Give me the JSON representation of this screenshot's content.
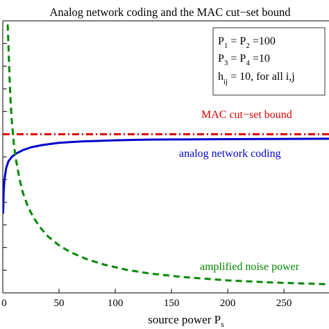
{
  "chart_data": {
    "type": "line",
    "title": "Analog network coding and the MAC cut−set bound",
    "xlabel": "source power P",
    "xlabel_sub": "s",
    "ylabel": "",
    "xlim": [
      0,
      290
    ],
    "ylim": [
      0,
      12
    ],
    "xticks": [
      0,
      50,
      100,
      150,
      200,
      250
    ],
    "xtick_labels": [
      "0",
      "50",
      "100",
      "150",
      "200",
      "250"
    ],
    "grid": false,
    "parameters_box": {
      "line1": {
        "a": "P",
        "a_sub": "1",
        "eq1": " = P",
        "b_sub": "2",
        "eq2": " =100"
      },
      "line2": {
        "a": "P",
        "a_sub": "3",
        "eq1": " = P",
        "b_sub": "4",
        "eq2": " =10"
      },
      "line3": {
        "a": "h",
        "a_sub": "ij",
        "eq1": " = 10, for all i,j"
      }
    },
    "series": [
      {
        "name": "MAC cut−set bound",
        "color": "#dd0000",
        "style": "dash-dot",
        "x": [
          0,
          290
        ],
        "y": [
          7.0,
          7.0
        ]
      },
      {
        "name": "analog network coding",
        "color": "#0000cc",
        "style": "solid",
        "x": [
          0.3,
          0.8,
          1.5,
          3,
          5,
          8,
          12,
          18,
          25,
          35,
          50,
          70,
          100,
          130,
          160,
          200,
          240,
          290
        ],
        "y": [
          3.5,
          4.5,
          5.0,
          5.5,
          5.8,
          6.0,
          6.15,
          6.3,
          6.42,
          6.52,
          6.62,
          6.68,
          6.73,
          6.76,
          6.77,
          6.78,
          6.79,
          6.8
        ]
      },
      {
        "name": "amplified noise power",
        "color": "#008800",
        "style": "dashed",
        "x": [
          4,
          5,
          6,
          7,
          8,
          10,
          12,
          15,
          18,
          22,
          27,
          33,
          40,
          50,
          60,
          75,
          90,
          110,
          130,
          160,
          200,
          240,
          290
        ],
        "y": [
          12.3,
          11.0,
          9.5,
          8.4,
          7.6,
          6.5,
          5.8,
          5.0,
          4.4,
          3.85,
          3.35,
          2.9,
          2.5,
          2.1,
          1.8,
          1.48,
          1.25,
          1.02,
          0.86,
          0.7,
          0.55,
          0.46,
          0.38
        ]
      }
    ]
  }
}
